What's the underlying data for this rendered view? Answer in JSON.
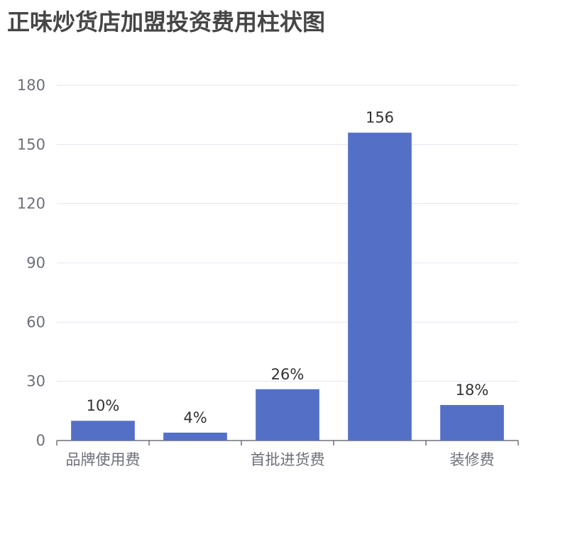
{
  "chart_data": {
    "type": "bar",
    "title": "正味炒货店加盟投资费用柱状图",
    "categories": [
      "品牌使用费",
      "",
      "首批进货费",
      "",
      "装修费"
    ],
    "values": [
      10,
      4,
      26,
      156,
      18
    ],
    "data_labels": [
      "10%",
      "4%",
      "26%",
      "156",
      "18%"
    ],
    "ylim": [
      0,
      180
    ],
    "yticks": [
      0,
      30,
      60,
      90,
      120,
      150,
      180
    ],
    "grid": true,
    "bar_color": "#5470c6"
  }
}
